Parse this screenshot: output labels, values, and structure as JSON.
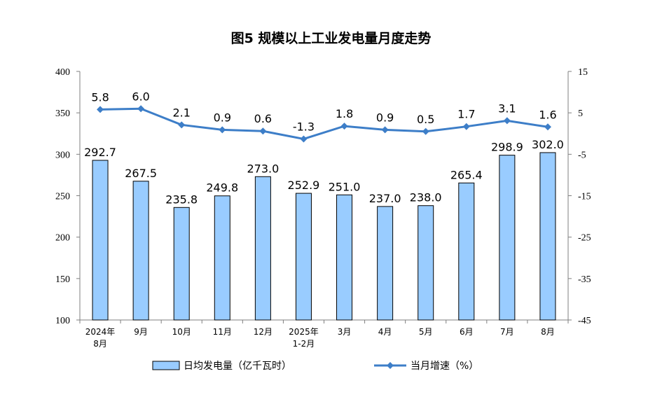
{
  "chart_data": {
    "type": "bar+line",
    "title": "图5  规模以上工业发电量月度走势",
    "categories": [
      [
        "2024年",
        "8月"
      ],
      [
        "9月"
      ],
      [
        "10月"
      ],
      [
        "11月"
      ],
      [
        "12月"
      ],
      [
        "2025年",
        "1-2月"
      ],
      [
        "3月"
      ],
      [
        "4月"
      ],
      [
        "5月"
      ],
      [
        "6月"
      ],
      [
        "7月"
      ],
      [
        "8月"
      ]
    ],
    "series": [
      {
        "name": "日均发电量（亿千瓦时）",
        "type": "bar",
        "axis": "left",
        "color": "#99CCFF",
        "values": [
          292.7,
          267.5,
          235.8,
          249.8,
          273.0,
          252.9,
          251.0,
          237.0,
          238.0,
          265.4,
          298.9,
          302.0
        ],
        "labels": [
          "292.7",
          "267.5",
          "235.8",
          "249.8",
          "273.0",
          "252.9",
          "251.0",
          "237.0",
          "238.0",
          "265.4",
          "298.9",
          "302.0"
        ]
      },
      {
        "name": "当月增速（%）",
        "type": "line",
        "axis": "right",
        "color": "#3D7EC8",
        "values": [
          5.8,
          6.0,
          2.1,
          0.9,
          0.6,
          -1.3,
          1.8,
          0.9,
          0.5,
          1.7,
          3.1,
          1.6
        ],
        "labels": [
          "5.8",
          "6.0",
          "2.1",
          "0.9",
          "0.6",
          "-1.3",
          "1.8",
          "0.9",
          "0.5",
          "1.7",
          "3.1",
          "1.6"
        ]
      }
    ],
    "y_left": {
      "range": [
        100,
        400
      ],
      "ticks": [
        100,
        150,
        200,
        250,
        300,
        350,
        400
      ]
    },
    "y_right": {
      "range": [
        -45,
        15
      ],
      "ticks": [
        -45,
        -35,
        -25,
        -15,
        -5,
        5,
        15
      ]
    },
    "grid": false,
    "legend_position": "bottom"
  }
}
